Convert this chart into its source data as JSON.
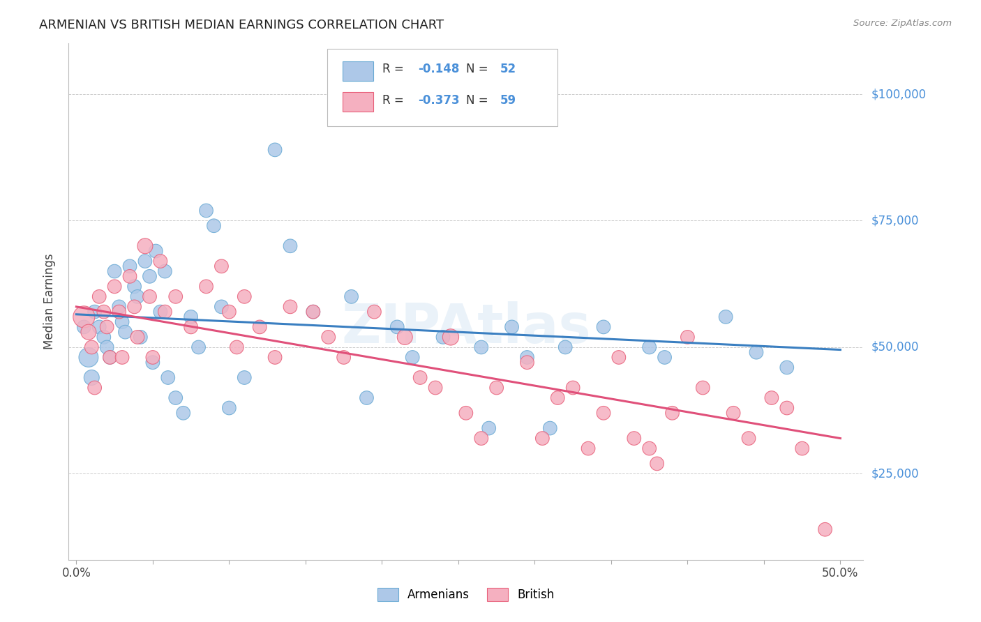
{
  "title": "ARMENIAN VS BRITISH MEDIAN EARNINGS CORRELATION CHART",
  "source": "Source: ZipAtlas.com",
  "ylabel": "Median Earnings",
  "xtick_labels_show": [
    "0.0%",
    "",
    "",
    "",
    "",
    "",
    "",
    "",
    "",
    "",
    "50.0%"
  ],
  "xtick_vals": [
    0.0,
    0.05,
    0.1,
    0.15,
    0.2,
    0.25,
    0.3,
    0.35,
    0.4,
    0.45,
    0.5
  ],
  "ytick_labels": [
    "$25,000",
    "$50,000",
    "$75,000",
    "$100,000"
  ],
  "ytick_vals": [
    25000,
    50000,
    75000,
    100000
  ],
  "xlim": [
    -0.005,
    0.515
  ],
  "ylim": [
    8000,
    110000
  ],
  "armenian_color": "#adc8e8",
  "british_color": "#f5b0c0",
  "armenian_edge_color": "#6aaad4",
  "british_edge_color": "#e8607a",
  "armenian_line_color": "#3a7fc1",
  "british_line_color": "#e0507a",
  "label_color": "#4a90d9",
  "background_color": "#ffffff",
  "grid_color": "#cccccc",
  "watermark": "ZIPAtlas",
  "armenians_x": [
    0.005,
    0.008,
    0.01,
    0.012,
    0.015,
    0.018,
    0.02,
    0.022,
    0.025,
    0.028,
    0.03,
    0.032,
    0.035,
    0.038,
    0.04,
    0.042,
    0.045,
    0.048,
    0.05,
    0.052,
    0.055,
    0.058,
    0.06,
    0.065,
    0.07,
    0.075,
    0.08,
    0.085,
    0.09,
    0.095,
    0.1,
    0.11,
    0.13,
    0.14,
    0.155,
    0.18,
    0.19,
    0.21,
    0.22,
    0.24,
    0.265,
    0.27,
    0.285,
    0.295,
    0.31,
    0.32,
    0.345,
    0.375,
    0.385,
    0.425,
    0.445,
    0.465
  ],
  "armenians_y": [
    54000,
    48000,
    44000,
    57000,
    54000,
    52000,
    50000,
    48000,
    65000,
    58000,
    55000,
    53000,
    66000,
    62000,
    60000,
    52000,
    67000,
    64000,
    47000,
    69000,
    57000,
    65000,
    44000,
    40000,
    37000,
    56000,
    50000,
    77000,
    74000,
    58000,
    38000,
    44000,
    89000,
    70000,
    57000,
    60000,
    40000,
    54000,
    48000,
    52000,
    50000,
    34000,
    54000,
    48000,
    34000,
    50000,
    54000,
    50000,
    48000,
    56000,
    49000,
    46000
  ],
  "armenians_size": [
    200,
    400,
    250,
    200,
    200,
    200,
    200,
    200,
    200,
    200,
    200,
    200,
    200,
    200,
    200,
    200,
    200,
    200,
    200,
    200,
    200,
    200,
    200,
    200,
    200,
    200,
    200,
    200,
    200,
    200,
    200,
    200,
    200,
    200,
    200,
    200,
    200,
    200,
    200,
    200,
    200,
    200,
    200,
    200,
    200,
    200,
    200,
    200,
    200,
    200,
    200,
    200
  ],
  "british_x": [
    0.005,
    0.008,
    0.01,
    0.012,
    0.015,
    0.018,
    0.02,
    0.022,
    0.025,
    0.028,
    0.03,
    0.035,
    0.038,
    0.04,
    0.045,
    0.048,
    0.05,
    0.055,
    0.058,
    0.065,
    0.075,
    0.085,
    0.095,
    0.1,
    0.105,
    0.11,
    0.12,
    0.13,
    0.14,
    0.155,
    0.165,
    0.175,
    0.195,
    0.215,
    0.225,
    0.235,
    0.245,
    0.255,
    0.265,
    0.275,
    0.295,
    0.305,
    0.315,
    0.325,
    0.335,
    0.345,
    0.355,
    0.365,
    0.375,
    0.38,
    0.39,
    0.4,
    0.41,
    0.43,
    0.44,
    0.455,
    0.465,
    0.475,
    0.49
  ],
  "british_y": [
    56000,
    53000,
    50000,
    42000,
    60000,
    57000,
    54000,
    48000,
    62000,
    57000,
    48000,
    64000,
    58000,
    52000,
    70000,
    60000,
    48000,
    67000,
    57000,
    60000,
    54000,
    62000,
    66000,
    57000,
    50000,
    60000,
    54000,
    48000,
    58000,
    57000,
    52000,
    48000,
    57000,
    52000,
    44000,
    42000,
    52000,
    37000,
    32000,
    42000,
    47000,
    32000,
    40000,
    42000,
    30000,
    37000,
    48000,
    32000,
    30000,
    27000,
    37000,
    52000,
    42000,
    37000,
    32000,
    40000,
    38000,
    30000,
    14000
  ],
  "british_size": [
    500,
    250,
    200,
    200,
    200,
    200,
    200,
    200,
    200,
    200,
    200,
    200,
    200,
    200,
    250,
    200,
    200,
    200,
    200,
    200,
    200,
    200,
    200,
    200,
    200,
    200,
    200,
    200,
    200,
    200,
    200,
    200,
    200,
    250,
    200,
    200,
    280,
    200,
    200,
    200,
    200,
    200,
    200,
    200,
    200,
    200,
    200,
    200,
    200,
    200,
    200,
    200,
    200,
    200,
    200,
    200,
    200,
    200,
    200
  ],
  "armenian_trend_x": [
    0.0,
    0.5
  ],
  "armenian_trend_y": [
    56500,
    49500
  ],
  "british_trend_x": [
    0.0,
    0.5
  ],
  "british_trend_y": [
    58000,
    32000
  ]
}
